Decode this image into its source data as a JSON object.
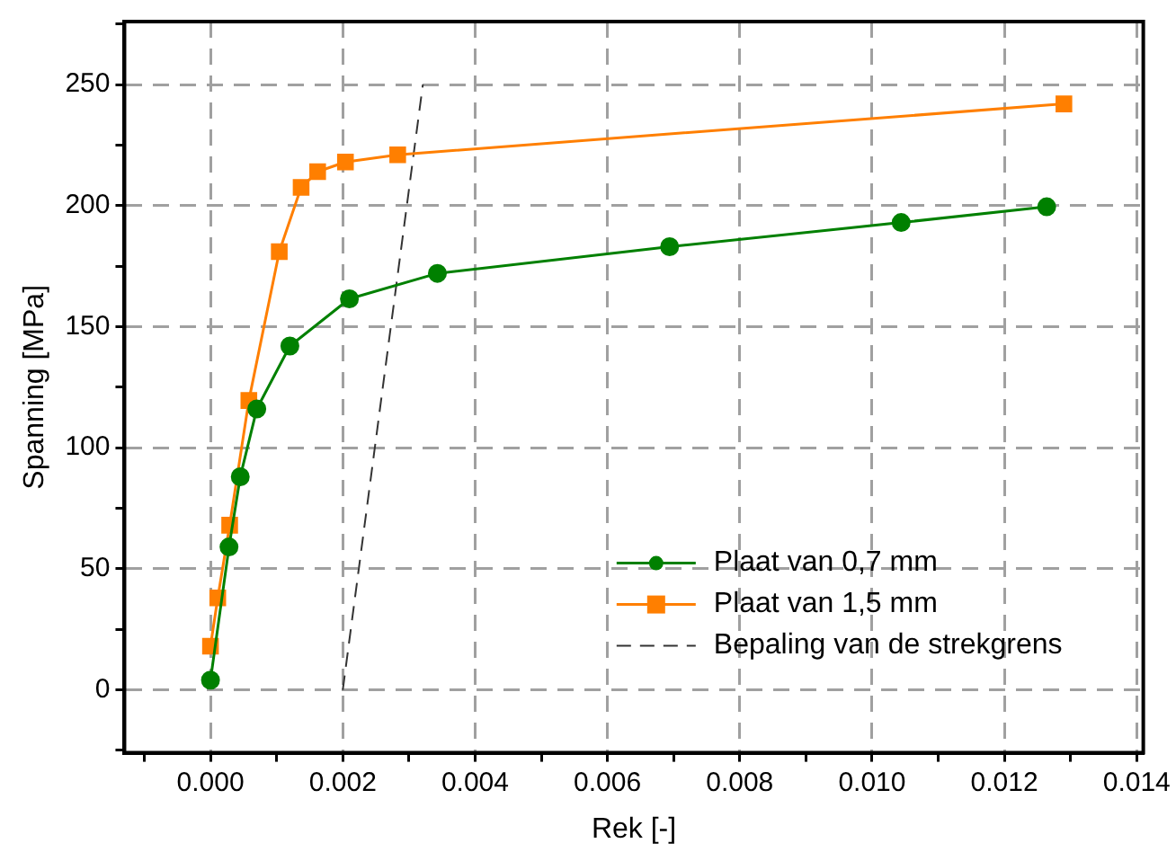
{
  "chart_data": {
    "type": "line",
    "xlabel": "Rek [-]",
    "ylabel": "Spanning [MPa]",
    "xlim": [
      -0.0013,
      0.0141
    ],
    "ylim": [
      -26,
      276
    ],
    "xticks": [
      {
        "value": -0.001,
        "label": null
      },
      {
        "value": 0,
        "label": "0.000"
      },
      {
        "value": 0.001,
        "label": null
      },
      {
        "value": 0.002,
        "label": "0.002"
      },
      {
        "value": 0.003,
        "label": null
      },
      {
        "value": 0.004,
        "label": "0.004"
      },
      {
        "value": 0.005,
        "label": null
      },
      {
        "value": 0.006,
        "label": "0.006"
      },
      {
        "value": 0.007,
        "label": null
      },
      {
        "value": 0.008,
        "label": "0.008"
      },
      {
        "value": 0.009,
        "label": null
      },
      {
        "value": 0.01,
        "label": "0.010"
      },
      {
        "value": 0.011,
        "label": null
      },
      {
        "value": 0.012,
        "label": "0.012"
      },
      {
        "value": 0.013,
        "label": null
      },
      {
        "value": 0.014,
        "label": "0.014"
      }
    ],
    "yticks": [
      {
        "value": -25,
        "label": null
      },
      0,
      {
        "value": 25,
        "label": null
      },
      50,
      {
        "value": 75,
        "label": null
      },
      100,
      {
        "value": 125,
        "label": null
      },
      150,
      {
        "value": 175,
        "label": null
      },
      200,
      {
        "value": 225,
        "label": null
      },
      250,
      {
        "value": 275,
        "label": null
      }
    ],
    "grid": true,
    "legend": "bottom right",
    "series": [
      {
        "name": "Plaat van 0,7 mm",
        "color": "#008000",
        "marker": "circle",
        "line_style": "solid",
        "x": [
          0,
          0.00028,
          0.00045,
          0.0007,
          0.0012,
          0.0021,
          0.00343,
          0.00694,
          0.01044,
          0.01264
        ],
        "values": [
          4,
          59,
          88,
          116,
          142,
          161.5,
          172,
          183,
          193,
          199.5
        ]
      },
      {
        "name": "Plaat van 1,5 mm",
        "color": "#ff7f00",
        "marker": "square",
        "line_style": "solid",
        "x": [
          0,
          0.00011,
          0.00029,
          0.00058,
          0.00104,
          0.00137,
          0.00162,
          0.00204,
          0.00283,
          0.0129
        ],
        "values": [
          18,
          38,
          68,
          119.5,
          181,
          207.5,
          214,
          218,
          221,
          242
        ]
      },
      {
        "name": "Bepaling van de strekgrens",
        "color": "#333333",
        "marker": "none",
        "line_style": "dashed",
        "x": [
          0.002,
          0.00321
        ],
        "values": [
          0,
          250
        ]
      }
    ]
  }
}
